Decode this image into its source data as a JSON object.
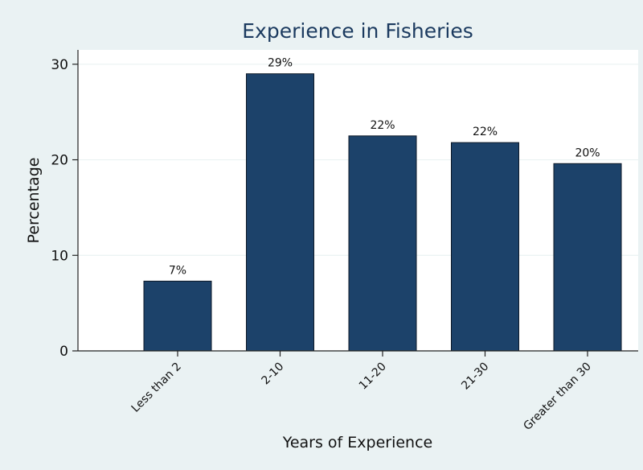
{
  "chart_data": {
    "type": "bar",
    "title": "Experience in Fisheries",
    "xlabel": "Years of Experience",
    "ylabel": "Percentage",
    "categories": [
      "Less than 2",
      "2-10",
      "11-20",
      "21-30",
      "Greater than 30"
    ],
    "values": [
      7.3,
      29.0,
      22.5,
      21.8,
      19.6
    ],
    "data_labels": [
      "7%",
      "29%",
      "22%",
      "22%",
      "20%"
    ],
    "ylim": [
      0,
      31.5
    ],
    "yticks": [
      0,
      10,
      20,
      30
    ],
    "grid": true,
    "legend": "none"
  },
  "colors": {
    "bar_fill": "#1c426a",
    "bar_stroke": "#0e1a28",
    "outer_background": "#eaf2f3",
    "plot_background": "#ffffff",
    "grid": "#eaf2f3",
    "title": "#1b3a5f"
  }
}
